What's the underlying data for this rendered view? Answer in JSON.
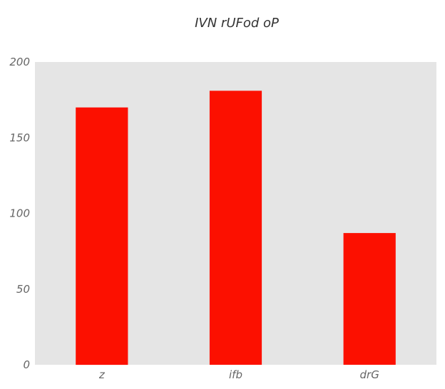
{
  "chart_data": {
    "type": "bar",
    "title": "IVN rUFod oP",
    "categories": [
      "z",
      "ifb",
      "drG"
    ],
    "values": [
      170,
      181,
      87
    ],
    "xlabel": "",
    "ylabel": "",
    "ylim": [
      0,
      200
    ],
    "yticks": [
      0,
      50,
      100,
      150,
      200
    ],
    "grid": false,
    "legend": "none",
    "colors": {
      "bar": "#fc1000",
      "plot_background": "#e5e5e5",
      "tick_text": "#666666",
      "title_text": "#333333"
    }
  }
}
